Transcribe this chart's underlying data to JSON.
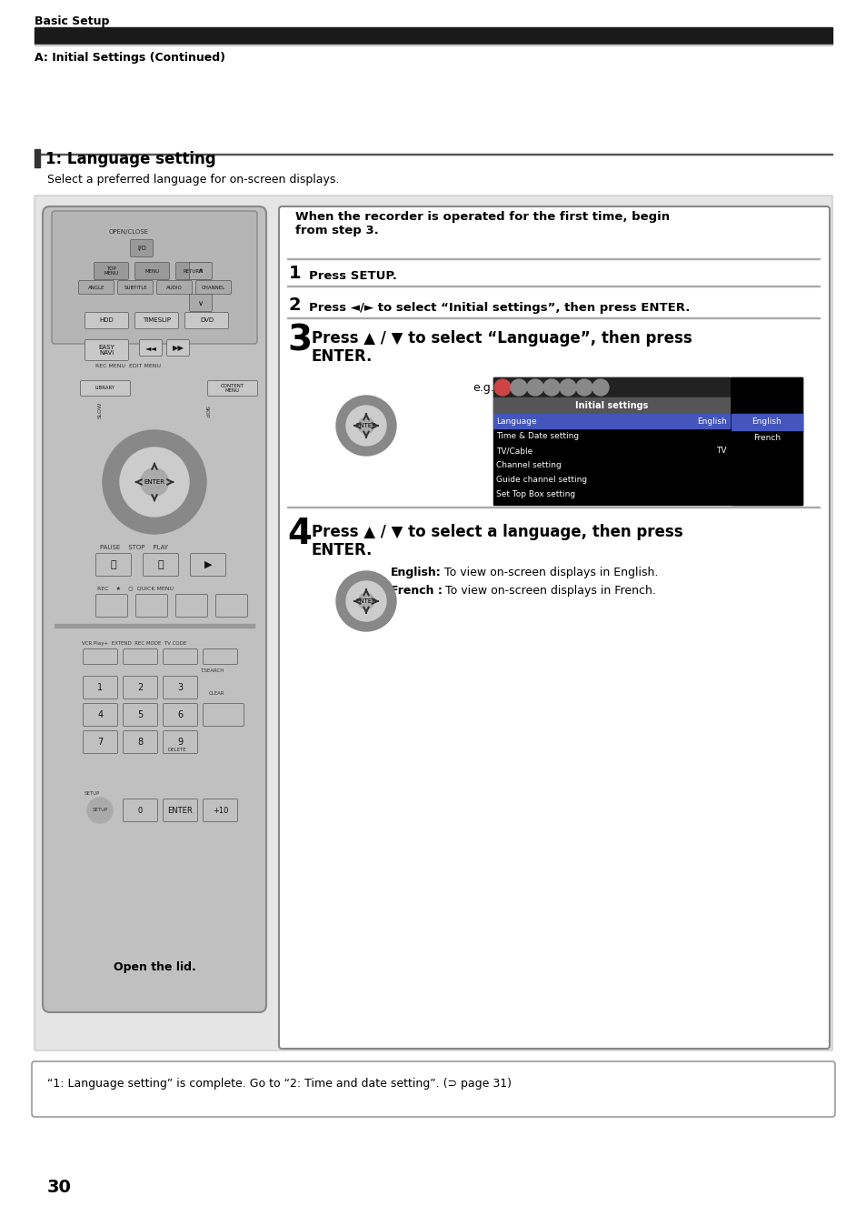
{
  "page_bg": "#ffffff",
  "header_bar_color": "#1a1a1a",
  "header_text": "Basic Setup",
  "subheader_text": "A: Initial Settings (Continued)",
  "section_title": "1: Language setting",
  "section_subtitle": "Select a preferred language for on-screen displays.",
  "section_bar_color": "#555555",
  "section_title_bar_color": "#333333",
  "main_panel_bg": "#e8e8e8",
  "instruction_panel_bg": "#ffffff",
  "instruction_panel_border": "#aaaaaa",
  "step_intro_bold": "When the recorder is operated for the first time, begin\nfrom step 3.",
  "step1_num": "1",
  "step1_text": "Press SETUP.",
  "step2_num": "2",
  "step2_text_pre": "Press ",
  "step2_text_mid": "◄/►",
  "step2_text_post": " to select “Initial settings”, then press ENTER.",
  "step3_num": "3",
  "step3_text": "Press ▲ / ▼ to select “Language”, then press\nENTER.",
  "step4_num": "4",
  "step4_text": "Press ▲ / ▼ to select a language, then press\nENTER.",
  "eg_label": "e.g.",
  "screen_title": "Initial settings",
  "screen_rows": [
    "Language",
    "Time & Date setting",
    "TV/Cable",
    "Channel setting",
    "Guide channel setting",
    "Set Top Box setting"
  ],
  "screen_row_values": [
    "English",
    "",
    "TV",
    "",
    "",
    ""
  ],
  "screen_highlight_row": 0,
  "screen_side_items": [
    "English",
    "French"
  ],
  "english_desc": "English: To view on-screen displays in English.",
  "french_desc": "French : To view on-screen displays in French.",
  "open_lid_text": "Open the lid.",
  "footer_text": "“1: Language setting” is complete. Go to “2: Time and date setting”. (⊃ page 31)",
  "page_number": "30",
  "divider_color": "#999999",
  "screen_bg": "#000000",
  "screen_header_bg": "#444444",
  "screen_highlight_bg": "#4444cc",
  "screen_text_color": "#ffffff",
  "screen_side_highlight_bg": "#4444cc",
  "remote_bg": "#aaaaaa"
}
